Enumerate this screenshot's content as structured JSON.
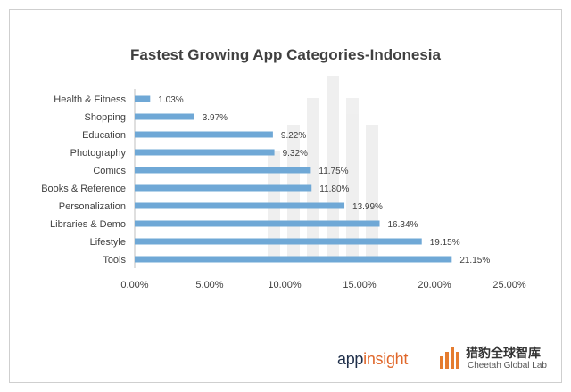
{
  "chart_data": {
    "type": "bar",
    "orientation": "horizontal",
    "title": "Fastest Growing App Categories-Indonesia",
    "categories": [
      "Health & Fitness",
      "Shopping",
      "Education",
      "Photography",
      "Comics",
      "Books & Reference",
      "Personalization",
      "Libraries & Demo",
      "Lifestyle",
      "Tools"
    ],
    "values": [
      1.03,
      3.97,
      9.22,
      9.32,
      11.75,
      11.8,
      13.99,
      16.34,
      19.15,
      21.15
    ],
    "data_labels": [
      "1.03%",
      "3.97%",
      "9.22%",
      "9.32%",
      "11.75%",
      "11.80%",
      "13.99%",
      "16.34%",
      "19.15%",
      "21.15%"
    ],
    "x_ticks": [
      "0.00%",
      "5.00%",
      "10.00%",
      "15.00%",
      "20.00%",
      "25.00%"
    ],
    "xlim": [
      0,
      25
    ],
    "grid": false,
    "bar_color": "#6fa8d6"
  },
  "logos": {
    "appinsight_prefix": "app",
    "appinsight_suffix": "insight",
    "cheetah_cn": "猎豹全球智库",
    "cheetah_en": "Cheetah Global Lab"
  }
}
